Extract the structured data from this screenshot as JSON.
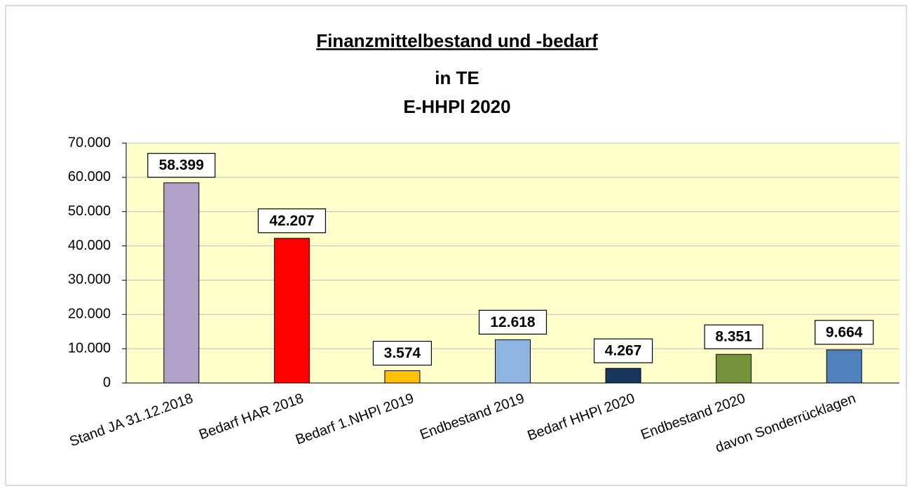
{
  "chart_data": {
    "type": "bar",
    "title": "Finanzmittelbestand und -bedarf",
    "subtitle": [
      "in TE",
      "E-HHPl 2020"
    ],
    "categories": [
      "Stand JA 31.12.2018",
      "Bedarf HAR 2018",
      "Bedarf 1.NHPl 2019",
      "Endbestand 2019",
      "Bedarf HHPl 2020",
      "Endbestand 2020",
      "davon Sonderrücklagen"
    ],
    "values": [
      58399,
      42207,
      3574,
      12618,
      4267,
      8351,
      9664
    ],
    "value_labels": [
      "58.399",
      "42.207",
      "3.574",
      "12.618",
      "4.267",
      "8.351",
      "9.664"
    ],
    "colors": [
      "#b1a0c7",
      "#ff0000",
      "#ffc000",
      "#8db4e2",
      "#17375e",
      "#77933c",
      "#4f81bd"
    ],
    "ylim": [
      0,
      70000
    ],
    "yticks": [
      0,
      {
        "value": 10000,
        "label": "10.000"
      },
      {
        "value": 20000,
        "label": "20.000"
      },
      {
        "value": 30000,
        "label": "30.000"
      },
      {
        "value": 40000,
        "label": "40.000"
      },
      {
        "value": 50000,
        "label": "50.000"
      },
      {
        "value": 60000,
        "label": "60.000"
      },
      {
        "value": 70000,
        "label": "70.000"
      }
    ],
    "grid": true
  }
}
